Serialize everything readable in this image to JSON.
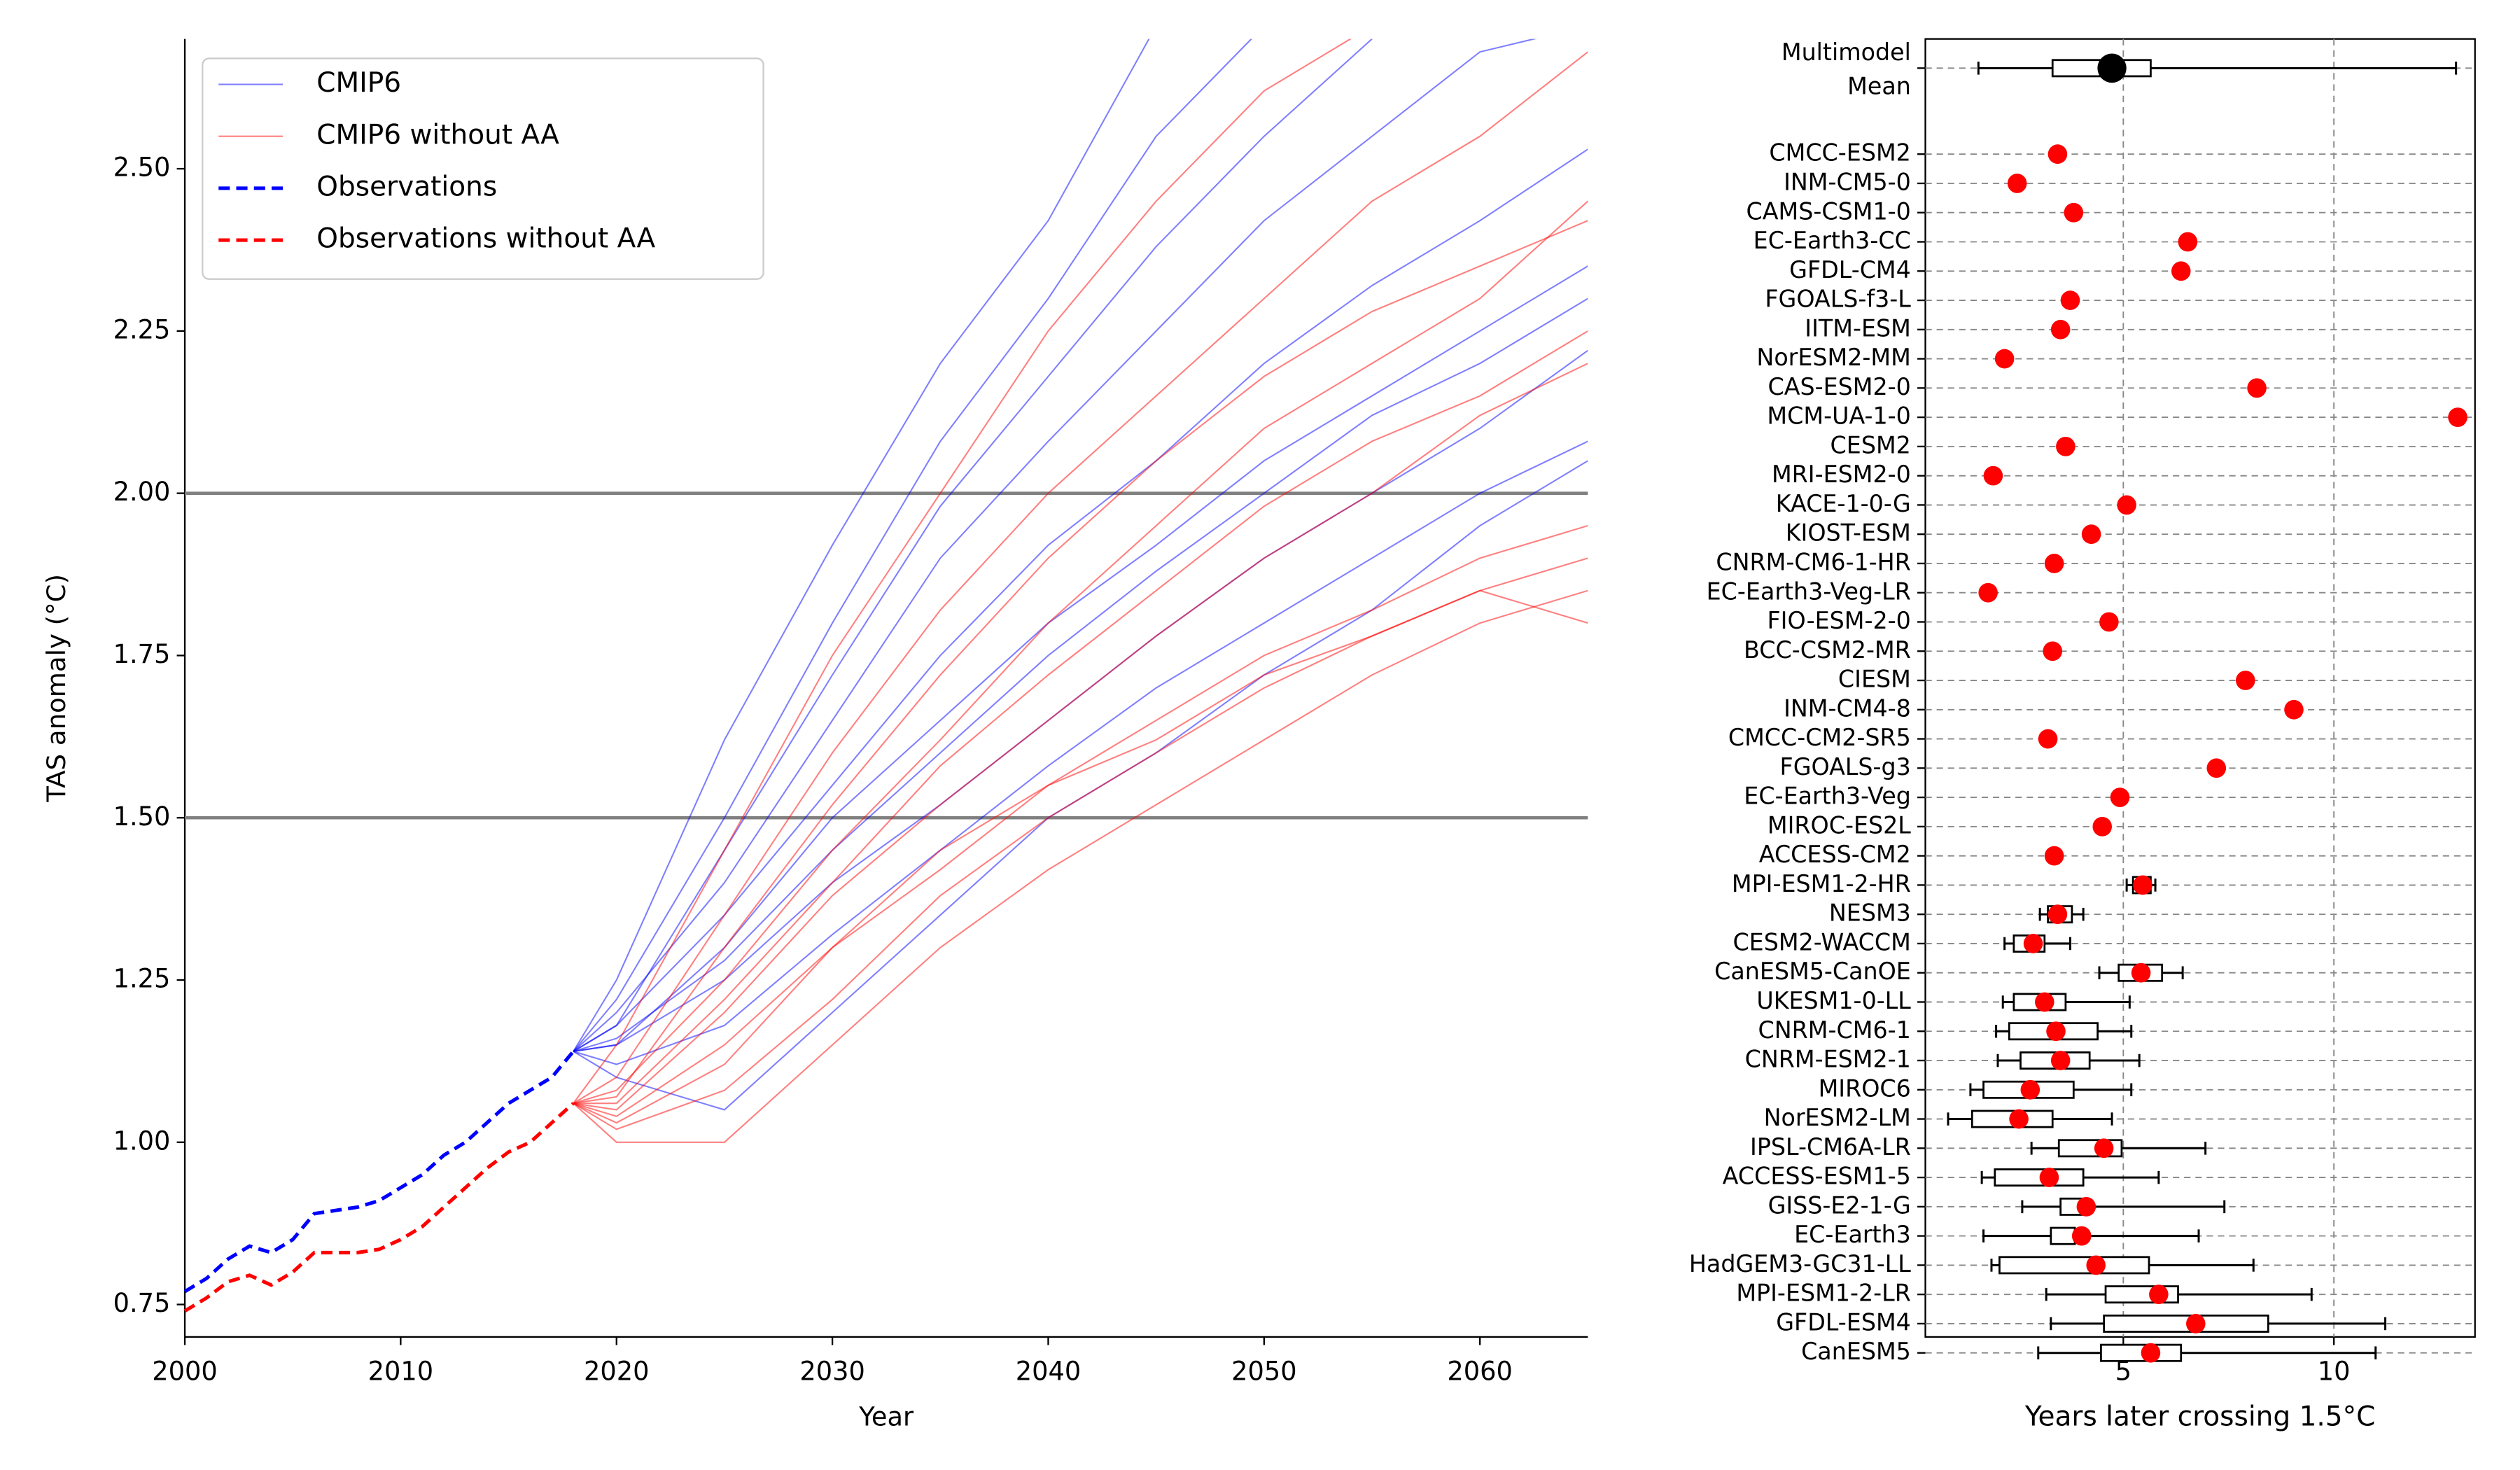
{
  "chart_data": [
    {
      "type": "line",
      "x_label": "Year",
      "y_label": "TAS anomaly (°C)",
      "xlim": [
        2000,
        2065
      ],
      "ylim": [
        0.7,
        2.7
      ],
      "xticks": [
        2000,
        2010,
        2020,
        2030,
        2040,
        2050,
        2060
      ],
      "yticks": [
        {
          "value": 0.75,
          "label": "0.75"
        },
        {
          "value": 1,
          "label": "1.00"
        },
        {
          "value": 1.25,
          "label": "1.25"
        },
        {
          "value": 1.5,
          "label": "1.50"
        },
        {
          "value": 1.75,
          "label": "1.75"
        },
        {
          "value": 2,
          "label": "2.00"
        },
        {
          "value": 2.25,
          "label": "2.25"
        },
        {
          "value": 2.5,
          "label": "2.50"
        }
      ],
      "reference_lines": [
        1.5,
        2.0
      ],
      "reference_color": "#808080",
      "legend": "upper left",
      "x": [
        2018,
        2020,
        2025,
        2030,
        2035,
        2040,
        2045,
        2050,
        2055,
        2060,
        2065
      ],
      "series": [
        {
          "name": "CMIP6",
          "color": "blue",
          "lines": [
            [
              1.14,
              1.25,
              1.62,
              1.92,
              2.2,
              2.42,
              2.72,
              null,
              null,
              null,
              null
            ],
            [
              1.14,
              1.22,
              1.5,
              1.8,
              2.08,
              2.3,
              2.55,
              2.72,
              null,
              null,
              null
            ],
            [
              1.14,
              1.2,
              1.4,
              1.65,
              1.9,
              2.08,
              2.25,
              2.42,
              2.55,
              2.68,
              2.72
            ],
            [
              1.14,
              1.18,
              1.35,
              1.55,
              1.75,
              1.92,
              2.05,
              2.2,
              2.32,
              2.42,
              2.53
            ],
            [
              1.14,
              1.16,
              1.28,
              1.45,
              1.6,
              1.75,
              1.88,
              2.0,
              2.12,
              2.2,
              2.3
            ],
            [
              1.14,
              1.15,
              1.25,
              1.4,
              1.52,
              1.65,
              1.78,
              1.9,
              2.0,
              2.1,
              2.22
            ],
            [
              1.14,
              1.12,
              1.18,
              1.32,
              1.45,
              1.58,
              1.7,
              1.8,
              1.9,
              2.0,
              2.08
            ],
            [
              1.14,
              1.1,
              1.05,
              1.2,
              1.35,
              1.5,
              1.6,
              1.72,
              1.82,
              1.95,
              2.05
            ],
            [
              1.14,
              1.18,
              1.45,
              1.72,
              1.98,
              2.18,
              2.38,
              2.55,
              2.7,
              null,
              null
            ],
            [
              1.14,
              1.15,
              1.3,
              1.5,
              1.65,
              1.8,
              1.92,
              2.05,
              2.15,
              2.25,
              2.35
            ]
          ]
        },
        {
          "name": "CMIP6 without AA",
          "color": "red",
          "lines": [
            [
              1.06,
              1.15,
              1.45,
              1.75,
              2.0,
              2.25,
              2.45,
              2.62,
              2.72,
              null,
              null
            ],
            [
              1.06,
              1.1,
              1.35,
              1.6,
              1.82,
              2.0,
              2.15,
              2.3,
              2.45,
              2.55,
              2.68
            ],
            [
              1.06,
              1.08,
              1.25,
              1.45,
              1.62,
              1.8,
              1.95,
              2.1,
              2.2,
              2.3,
              2.45
            ],
            [
              1.06,
              1.05,
              1.2,
              1.38,
              1.52,
              1.65,
              1.78,
              1.9,
              2.0,
              2.12,
              2.2
            ],
            [
              1.06,
              1.03,
              1.12,
              1.3,
              1.45,
              1.55,
              1.65,
              1.75,
              1.82,
              1.9,
              1.95
            ],
            [
              1.06,
              1.0,
              1.0,
              1.15,
              1.3,
              1.42,
              1.52,
              1.62,
              1.72,
              1.8,
              1.85
            ],
            [
              1.06,
              1.02,
              1.08,
              1.22,
              1.38,
              1.5,
              1.6,
              1.7,
              1.78,
              1.85,
              1.9
            ],
            [
              1.06,
              1.07,
              1.3,
              1.52,
              1.72,
              1.9,
              2.05,
              2.18,
              2.28,
              2.35,
              2.42
            ],
            [
              1.06,
              1.04,
              1.15,
              1.3,
              1.42,
              1.55,
              1.62,
              1.72,
              1.78,
              1.85,
              1.8
            ],
            [
              1.06,
              1.06,
              1.22,
              1.4,
              1.58,
              1.72,
              1.85,
              1.98,
              2.08,
              2.15,
              2.25
            ]
          ]
        }
      ],
      "obs_x": [
        2000,
        2001,
        2002,
        2003,
        2004,
        2005,
        2006,
        2007,
        2008,
        2009,
        2010,
        2011,
        2012,
        2013,
        2014,
        2015,
        2016,
        2017,
        2018
      ],
      "observations": [
        {
          "name": "Observations",
          "color": "blue",
          "values": [
            0.77,
            0.79,
            0.82,
            0.84,
            0.83,
            0.85,
            0.89,
            0.895,
            0.9,
            0.91,
            0.93,
            0.95,
            0.98,
            1.0,
            1.03,
            1.06,
            1.08,
            1.1,
            1.14
          ]
        },
        {
          "name": "Observations without AA",
          "color": "red",
          "values": [
            0.74,
            0.76,
            0.785,
            0.795,
            0.78,
            0.8,
            0.83,
            0.83,
            0.83,
            0.835,
            0.85,
            0.87,
            0.9,
            0.93,
            0.96,
            0.985,
            1.0,
            1.03,
            1.06
          ]
        }
      ]
    },
    {
      "type": "dot_box",
      "x_label": "Years later crossing 1.5°C",
      "xlim": [
        0.3,
        13.35
      ],
      "xticks": [
        5,
        10
      ],
      "grid": true,
      "color": "red",
      "mean": {
        "label": [
          "Multimodel",
          "Mean"
        ],
        "value": 4.73,
        "box": [
          1.56,
          3.32,
          5.65,
          12.9
        ],
        "color": "black"
      },
      "categories": [
        "CMCC-ESM2",
        "INM-CM5-0",
        "CAMS-CSM1-0",
        "EC-Earth3-CC",
        "GFDL-CM4",
        "FGOALS-f3-L",
        "IITM-ESM",
        "NorESM2-MM",
        "CAS-ESM2-0",
        "MCM-UA-1-0",
        "CESM2",
        "MRI-ESM2-0",
        "KACE-1-0-G",
        "KIOST-ESM",
        "CNRM-CM6-1-HR",
        "EC-Earth3-Veg-LR",
        "FIO-ESM-2-0",
        "BCC-CSM2-MR",
        "CIESM",
        "INM-CM4-8",
        "CMCC-CM2-SR5",
        "FGOALS-g3",
        "EC-Earth3-Veg",
        "MIROC-ES2L",
        "ACCESS-CM2",
        "MPI-ESM1-2-HR",
        "NESM3",
        "CESM2-WACCM",
        "CanESM5-CanOE",
        "UKESM1-0-LL",
        "CNRM-CM6-1",
        "CNRM-ESM2-1",
        "MIROC6",
        "NorESM2-LM",
        "IPSL-CM6A-LR",
        "ACCESS-ESM1-5",
        "GISS-E2-1-G",
        "EC-Earth3",
        "HadGEM3-GC31-LL",
        "MPI-ESM1-2-LR",
        "GFDL-ESM4",
        "CanESM5"
      ],
      "values": [
        3.44,
        2.48,
        3.82,
        6.53,
        6.37,
        3.74,
        3.51,
        2.18,
        8.17,
        12.94,
        3.63,
        1.91,
        5.08,
        4.24,
        3.36,
        1.79,
        4.66,
        3.32,
        7.9,
        9.05,
        3.21,
        7.21,
        4.92,
        4.5,
        3.36,
        5.46,
        3.44,
        2.86,
        5.42,
        3.13,
        3.4,
        3.51,
        2.79,
        2.52,
        4.54,
        3.24,
        4.12,
        4.01,
        4.35,
        5.84,
        6.72,
        5.65
      ],
      "boxes": [
        null,
        null,
        null,
        null,
        null,
        null,
        null,
        null,
        null,
        null,
        null,
        null,
        null,
        null,
        null,
        null,
        null,
        null,
        null,
        null,
        null,
        null,
        null,
        null,
        null,
        [
          5.08,
          5.23,
          5.65,
          5.76
        ],
        [
          3.02,
          3.21,
          3.78,
          4.05
        ],
        [
          2.18,
          2.4,
          3.13,
          3.74
        ],
        [
          4.43,
          4.89,
          5.92,
          6.41
        ],
        [
          2.14,
          2.4,
          3.63,
          5.15
        ],
        [
          1.98,
          2.29,
          4.39,
          5.19
        ],
        [
          2.02,
          2.56,
          4.2,
          5.38
        ],
        [
          1.37,
          1.68,
          3.82,
          5.19
        ],
        [
          0.84,
          1.41,
          3.32,
          4.73
        ],
        [
          2.82,
          3.47,
          4.96,
          6.95
        ],
        [
          1.64,
          1.95,
          4.05,
          5.84
        ],
        [
          2.6,
          3.51,
          4.01,
          7.4
        ],
        [
          1.68,
          3.28,
          3.85,
          6.79
        ],
        [
          1.87,
          2.06,
          5.61,
          8.09
        ],
        [
          3.17,
          4.58,
          6.3,
          9.47
        ],
        [
          3.28,
          4.54,
          8.44,
          11.22
        ],
        [
          2.98,
          4.47,
          6.37,
          10.99
        ]
      ]
    }
  ]
}
